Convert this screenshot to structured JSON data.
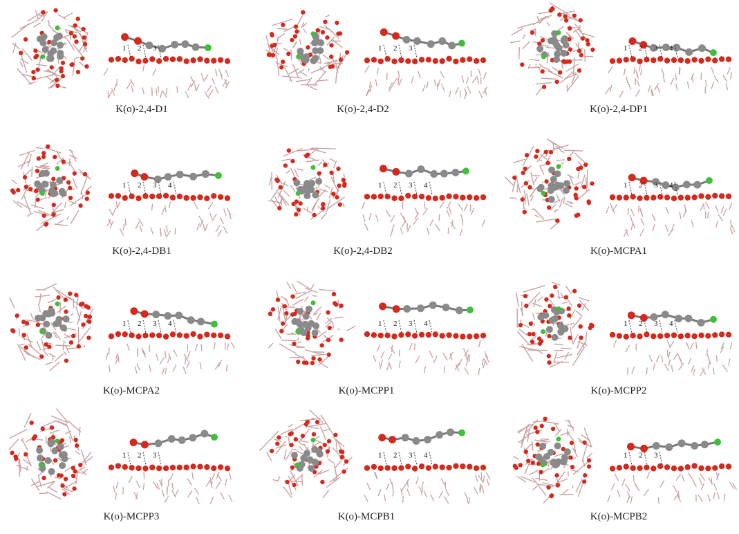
{
  "figure": {
    "panels": [
      {
        "caption": "K(o)-2,4-D1",
        "bond_labels": [
          "1",
          "2",
          "3"
        ]
      },
      {
        "caption": "K(o)-2,4-D2",
        "bond_labels": [
          "1",
          "2",
          "3"
        ]
      },
      {
        "caption": "K(o)-2,4-DP1",
        "bond_labels": [
          "1",
          "2",
          "3",
          "4"
        ]
      },
      {
        "caption": "K(o)-2,4-DB1",
        "bond_labels": [
          "1",
          "2",
          "3",
          "4"
        ]
      },
      {
        "caption": "K(o)-2,4-DB2",
        "bond_labels": [
          "1",
          "2",
          "3",
          "4"
        ]
      },
      {
        "caption": "K(o)-MCPA1",
        "bond_labels": [
          "1",
          "2",
          "3",
          "4"
        ]
      },
      {
        "caption": "K(o)-MCPA2",
        "bond_labels": [
          "1",
          "2",
          "3",
          "4"
        ]
      },
      {
        "caption": "K(o)-MCPP1",
        "bond_labels": [
          "1",
          "2",
          "3",
          "4"
        ]
      },
      {
        "caption": "K(o)-MCPP2",
        "bond_labels": [
          "1",
          "2",
          "3",
          "4"
        ]
      },
      {
        "caption": "K(o)-MCPP3",
        "bond_labels": [
          "1",
          "2",
          "3"
        ]
      },
      {
        "caption": "K(o)-MCPB1",
        "bond_labels": [
          "1",
          "2",
          "3",
          "4"
        ]
      },
      {
        "caption": "K(o)-MCPB2",
        "bond_labels": [
          "1",
          "2",
          "3"
        ]
      }
    ],
    "atom_colors": {
      "oxygen": "#d42a1e",
      "carbon": "#8a8a8a",
      "hydrogen": "#d8d8d8",
      "chlorine": "#3fbf3a",
      "substrate_bond": "#c9a0a0"
    }
  }
}
